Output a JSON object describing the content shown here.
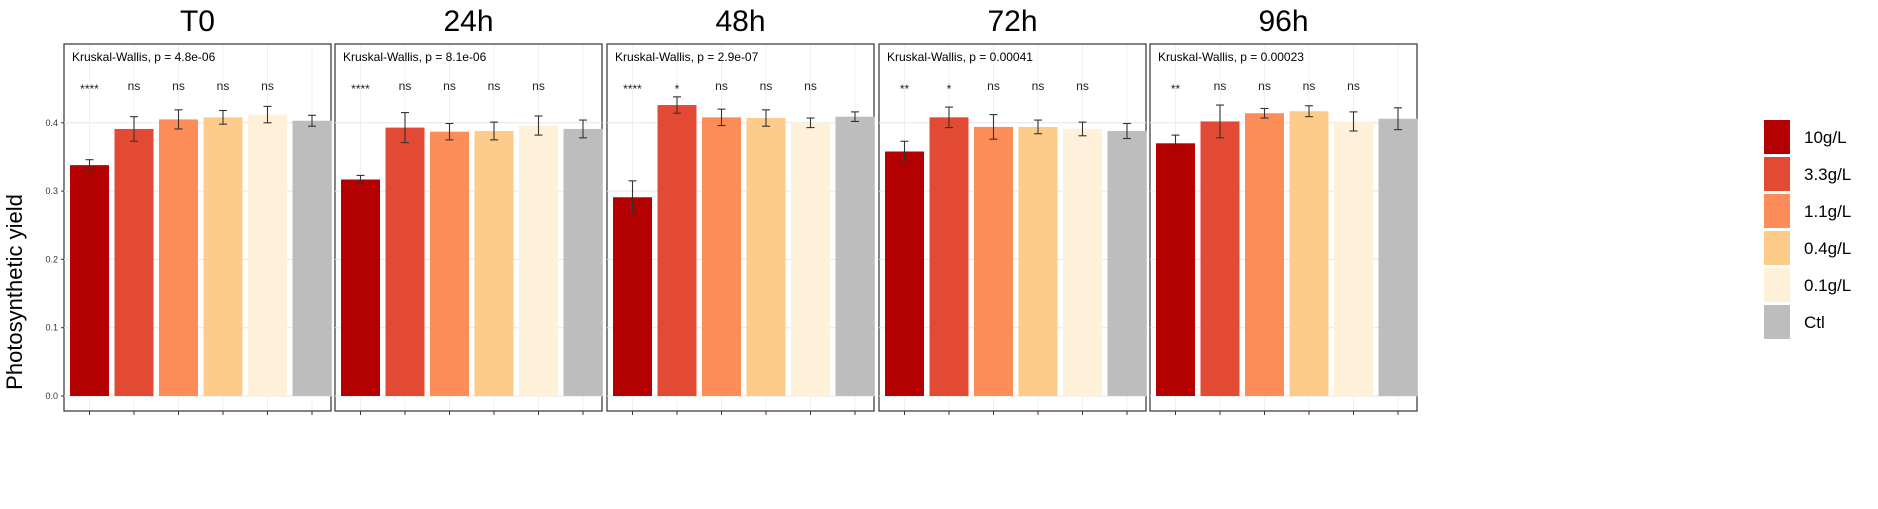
{
  "chart_data": {
    "type": "bar",
    "ylabel": "Photosynthetic yield",
    "ylim": [
      0,
      0.47
    ],
    "yticks": [
      "0.0",
      "0.1",
      "0.2",
      "0.3",
      "0.4"
    ],
    "grid": true,
    "legend_position": "right",
    "series": [
      {
        "name": "10g/L",
        "color": "#b30000"
      },
      {
        "name": "3.3g/L",
        "color": "#e34a33"
      },
      {
        "name": "1.1g/L",
        "color": "#fc8d59"
      },
      {
        "name": "0.4g/L",
        "color": "#fdcc8a"
      },
      {
        "name": "0.1g/L",
        "color": "#fef0d9"
      },
      {
        "name": "Ctl",
        "color": "#bdbdbd"
      }
    ],
    "panels": [
      {
        "title": "T0",
        "test": "Kruskal-Wallis, p = 4.8e-06",
        "values": [
          0.338,
          0.391,
          0.405,
          0.408,
          0.412,
          0.403
        ],
        "errors": [
          0.008,
          0.018,
          0.014,
          0.01,
          0.012,
          0.008
        ],
        "significance": [
          "****",
          "ns",
          "ns",
          "ns",
          "ns",
          ""
        ]
      },
      {
        "title": "24h",
        "test": "Kruskal-Wallis, p = 8.1e-06",
        "values": [
          0.317,
          0.393,
          0.387,
          0.388,
          0.396,
          0.391
        ],
        "errors": [
          0.006,
          0.022,
          0.012,
          0.013,
          0.014,
          0.013
        ],
        "significance": [
          "****",
          "ns",
          "ns",
          "ns",
          "ns",
          ""
        ]
      },
      {
        "title": "48h",
        "test": "Kruskal-Wallis, p = 2.9e-07",
        "values": [
          0.291,
          0.426,
          0.408,
          0.407,
          0.4,
          0.409
        ],
        "errors": [
          0.024,
          0.012,
          0.012,
          0.012,
          0.007,
          0.007
        ],
        "significance": [
          "****",
          "*",
          "ns",
          "ns",
          "ns",
          ""
        ]
      },
      {
        "title": "72h",
        "test": "Kruskal-Wallis, p = 0.00041",
        "values": [
          0.358,
          0.408,
          0.394,
          0.394,
          0.391,
          0.388
        ],
        "errors": [
          0.015,
          0.015,
          0.018,
          0.01,
          0.01,
          0.011
        ],
        "significance": [
          "**",
          "*",
          "ns",
          "ns",
          "ns",
          ""
        ]
      },
      {
        "title": "96h",
        "test": "Kruskal-Wallis, p = 0.00023",
        "values": [
          0.37,
          0.402,
          0.414,
          0.417,
          0.402,
          0.406
        ],
        "errors": [
          0.012,
          0.024,
          0.007,
          0.008,
          0.014,
          0.016
        ],
        "significance": [
          "**",
          "ns",
          "ns",
          "ns",
          "ns",
          ""
        ]
      }
    ]
  }
}
